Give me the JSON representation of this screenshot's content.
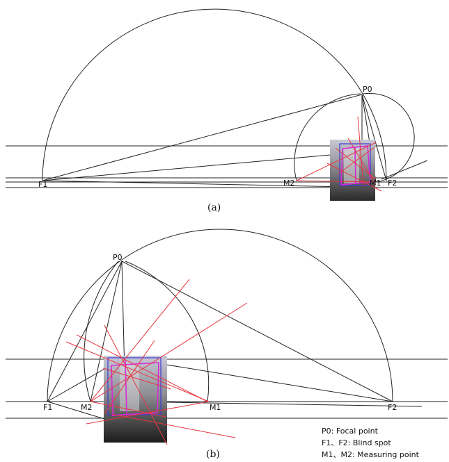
{
  "panel_a": {
    "caption": "(a)",
    "labels": {
      "p0": "P0",
      "f1": "F1",
      "f2": "F2",
      "m1": "M1",
      "m2": "M2"
    }
  },
  "panel_b": {
    "caption": "(b)",
    "labels": {
      "p0": "P0",
      "f1": "F1",
      "f2": "F2",
      "m1": "M1",
      "m2": "M2"
    }
  },
  "legend": {
    "line1": "P0: Focal point",
    "line2": "F1、F2: Blind spot",
    "line3": "M1、M2: Measuring point"
  },
  "colors": {
    "construction_lines": "#222222",
    "measuring_rays": "#e8353f",
    "building_outline": "#d42bd4",
    "photo_frame": "#3b3bd8"
  }
}
